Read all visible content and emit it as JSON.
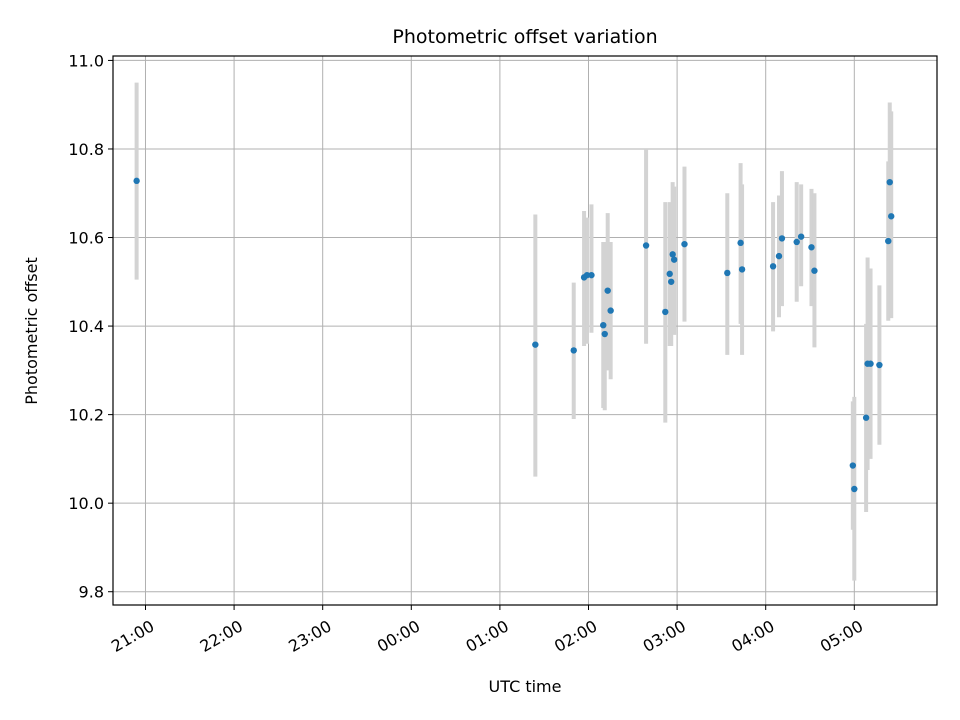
{
  "chart_data": {
    "type": "scatter",
    "title": "Photometric offset variation",
    "xlabel": "UTC time",
    "ylabel": "Photometric offset",
    "xlim": [
      "20:38",
      "29:56"
    ],
    "ylim": [
      9.77,
      11.01
    ],
    "grid": true,
    "x_ticks": [
      {
        "value": "21:00",
        "label": "21:00"
      },
      {
        "value": "22:00",
        "label": "22:00"
      },
      {
        "value": "23:00",
        "label": "23:00"
      },
      {
        "value": "24:00",
        "label": "00:00"
      },
      {
        "value": "25:00",
        "label": "01:00"
      },
      {
        "value": "26:00",
        "label": "02:00"
      },
      {
        "value": "27:00",
        "label": "03:00"
      },
      {
        "value": "28:00",
        "label": "04:00"
      },
      {
        "value": "29:00",
        "label": "05:00"
      }
    ],
    "y_ticks": [
      "9.8",
      "10.0",
      "10.2",
      "10.4",
      "10.6",
      "10.8",
      "11.0"
    ],
    "colors": {
      "points": "#1f77b4",
      "errorbars": "#d3d3d3",
      "grid": "#b0b0b0"
    },
    "points": [
      {
        "t": "20:54",
        "y": 10.728,
        "lo": 10.505,
        "hi": 10.95
      },
      {
        "t": "25:24",
        "y": 10.358,
        "lo": 10.06,
        "hi": 10.652
      },
      {
        "t": "25:50",
        "y": 10.345,
        "lo": 10.19,
        "hi": 10.498
      },
      {
        "t": "25:57",
        "y": 10.51,
        "lo": 10.355,
        "hi": 10.66
      },
      {
        "t": "25:59",
        "y": 10.515,
        "lo": 10.36,
        "hi": 10.645
      },
      {
        "t": "26:02",
        "y": 10.515,
        "lo": 10.385,
        "hi": 10.675
      },
      {
        "t": "26:10",
        "y": 10.402,
        "lo": 10.215,
        "hi": 10.59
      },
      {
        "t": "26:11",
        "y": 10.382,
        "lo": 10.21,
        "hi": 10.59
      },
      {
        "t": "26:13",
        "y": 10.48,
        "lo": 10.3,
        "hi": 10.655
      },
      {
        "t": "26:15",
        "y": 10.435,
        "lo": 10.28,
        "hi": 10.59
      },
      {
        "t": "26:39",
        "y": 10.582,
        "lo": 10.36,
        "hi": 10.798
      },
      {
        "t": "26:52",
        "y": 10.432,
        "lo": 10.182,
        "hi": 10.68
      },
      {
        "t": "26:55",
        "y": 10.518,
        "lo": 10.355,
        "hi": 10.68
      },
      {
        "t": "26:56",
        "y": 10.5,
        "lo": 10.355,
        "hi": 10.645
      },
      {
        "t": "26:57",
        "y": 10.562,
        "lo": 10.39,
        "hi": 10.725
      },
      {
        "t": "26:58",
        "y": 10.55,
        "lo": 10.38,
        "hi": 10.715
      },
      {
        "t": "27:05",
        "y": 10.585,
        "lo": 10.41,
        "hi": 10.76
      },
      {
        "t": "27:34",
        "y": 10.52,
        "lo": 10.335,
        "hi": 10.7
      },
      {
        "t": "27:43",
        "y": 10.588,
        "lo": 10.405,
        "hi": 10.768
      },
      {
        "t": "27:44",
        "y": 10.528,
        "lo": 10.335,
        "hi": 10.72
      },
      {
        "t": "28:05",
        "y": 10.535,
        "lo": 10.388,
        "hi": 10.68
      },
      {
        "t": "28:09",
        "y": 10.558,
        "lo": 10.42,
        "hi": 10.695
      },
      {
        "t": "28:11",
        "y": 10.598,
        "lo": 10.445,
        "hi": 10.75
      },
      {
        "t": "28:21",
        "y": 10.59,
        "lo": 10.455,
        "hi": 10.725
      },
      {
        "t": "28:24",
        "y": 10.602,
        "lo": 10.49,
        "hi": 10.72
      },
      {
        "t": "28:31",
        "y": 10.578,
        "lo": 10.445,
        "hi": 10.71
      },
      {
        "t": "28:33",
        "y": 10.525,
        "lo": 10.352,
        "hi": 10.7
      },
      {
        "t": "28:59",
        "y": 10.085,
        "lo": 9.94,
        "hi": 10.23
      },
      {
        "t": "29:00",
        "y": 10.032,
        "lo": 9.825,
        "hi": 10.24
      },
      {
        "t": "29:08",
        "y": 10.193,
        "lo": 9.98,
        "hi": 10.405
      },
      {
        "t": "29:09",
        "y": 10.315,
        "lo": 10.075,
        "hi": 10.555
      },
      {
        "t": "29:11",
        "y": 10.315,
        "lo": 10.1,
        "hi": 10.53
      },
      {
        "t": "29:17",
        "y": 10.312,
        "lo": 10.132,
        "hi": 10.492
      },
      {
        "t": "29:23",
        "y": 10.592,
        "lo": 10.412,
        "hi": 10.772
      },
      {
        "t": "29:24",
        "y": 10.725,
        "lo": 10.545,
        "hi": 10.905
      },
      {
        "t": "29:25",
        "y": 10.648,
        "lo": 10.418,
        "hi": 10.885
      }
    ]
  }
}
